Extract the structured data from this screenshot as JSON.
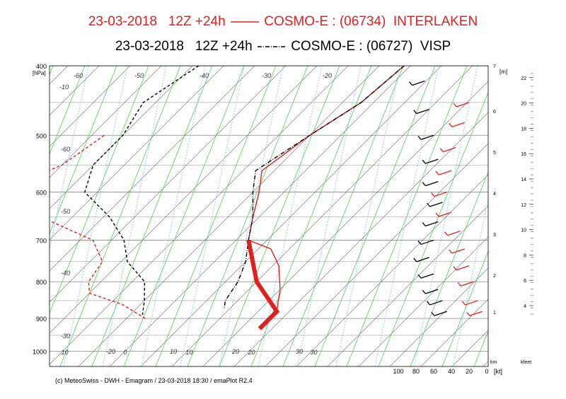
{
  "chart_data": {
    "type": "line",
    "title_lines": [
      {
        "date": "23-03-2018",
        "run": "12Z +24h",
        "model": "COSMO-E : (06734)",
        "station": "INTERLAKEN",
        "line_style": "solid",
        "color": "#e02020"
      },
      {
        "date": "23-03-2018",
        "run": "12Z +24h",
        "model": "COSMO-E : (06727)",
        "station": "VISP",
        "line_style": "dash-dot",
        "color": "#000000"
      }
    ],
    "y_axis": {
      "label": "[hPa]",
      "top_label": "400",
      "ticks": [
        400,
        500,
        600,
        700,
        800,
        900,
        1000
      ],
      "scale": "log",
      "ylim": [
        1050,
        400
      ]
    },
    "x_axis": {
      "tick_labels": [
        "10",
        "0",
        "10",
        "20",
        "30"
      ],
      "xlim": [
        -20,
        40
      ]
    },
    "isotherm_labels": [
      "-60",
      "-50",
      "-40",
      "-30",
      "-20",
      "-10",
      "-60",
      "-50",
      "-40",
      "-30",
      "-20",
      "10",
      "20",
      "30"
    ],
    "height_axis_m": {
      "label": "[m]",
      "ticks": [
        "1",
        "2",
        "3",
        "4",
        "5",
        "6",
        "7"
      ]
    },
    "height_axis_kfeet": {
      "label": "kfeet",
      "ticks": [
        "4",
        "6",
        "8",
        "10",
        "12",
        "14",
        "16",
        "18",
        "20",
        "22"
      ]
    },
    "wind_axis": {
      "label": "[kt]",
      "km_label": "km",
      "ticks": [
        "100",
        "80",
        "60",
        "40",
        "20",
        "0"
      ]
    },
    "series": [
      {
        "name": "INTERLAKEN",
        "color": "#e02020",
        "style": "solid",
        "variable": "temperature",
        "points": [
          [
            -11,
            400
          ],
          [
            -12,
            450
          ],
          [
            -15,
            500
          ],
          [
            -17,
            560
          ],
          [
            -14,
            600
          ],
          [
            -11,
            650
          ],
          [
            -8,
            700
          ],
          [
            -3,
            720
          ],
          [
            1,
            760
          ],
          [
            5,
            820
          ],
          [
            8,
            880
          ],
          [
            8,
            900
          ]
        ]
      },
      {
        "name": "VISP",
        "color": "#000000",
        "style": "dash-dot",
        "variable": "temperature",
        "points": [
          [
            -11,
            400
          ],
          [
            -12,
            450
          ],
          [
            -15,
            500
          ],
          [
            -18,
            560
          ],
          [
            -15,
            600
          ],
          [
            -11,
            650
          ],
          [
            -8,
            700
          ],
          [
            -5,
            750
          ],
          [
            -3,
            800
          ],
          [
            -2,
            850
          ],
          [
            -1,
            870
          ]
        ]
      },
      {
        "name": "INTERLAKEN",
        "color": "#e02020",
        "style": "dashed",
        "variable": "dewpoint",
        "points": [
          [
            -48,
            500
          ],
          [
            -50,
            550
          ],
          [
            -56,
            600
          ],
          [
            -45,
            650
          ],
          [
            -33,
            700
          ],
          [
            -28,
            750
          ],
          [
            -27,
            800
          ],
          [
            -25,
            830
          ],
          [
            -18,
            860
          ],
          [
            -12,
            900
          ]
        ]
      },
      {
        "name": "VISP",
        "color": "#000000",
        "style": "dashed",
        "variable": "dewpoint",
        "points": [
          [
            -44,
            400
          ],
          [
            -47,
            450
          ],
          [
            -45,
            500
          ],
          [
            -45,
            550
          ],
          [
            -42,
            600
          ],
          [
            -34,
            650
          ],
          [
            -28,
            700
          ],
          [
            -24,
            750
          ],
          [
            -18,
            800
          ],
          [
            -15,
            850
          ],
          [
            -13,
            890
          ]
        ]
      },
      {
        "name": "INTERLAKEN",
        "color": "#e02020",
        "style": "thick",
        "variable": "surface-lapse",
        "points": [
          [
            -8,
            700
          ],
          [
            0,
            800
          ],
          [
            8,
            880
          ],
          [
            8,
            930
          ]
        ]
      }
    ],
    "wind_barbs": {
      "INTERLAKEN": [
        {
          "p": 450,
          "speed_kt": 20
        },
        {
          "p": 480,
          "speed_kt": 25
        },
        {
          "p": 520,
          "speed_kt": 35
        },
        {
          "p": 560,
          "speed_kt": 40
        },
        {
          "p": 600,
          "speed_kt": 45
        },
        {
          "p": 640,
          "speed_kt": 40
        },
        {
          "p": 680,
          "speed_kt": 30
        },
        {
          "p": 720,
          "speed_kt": 25
        },
        {
          "p": 760,
          "speed_kt": 20
        },
        {
          "p": 800,
          "speed_kt": 15
        },
        {
          "p": 850,
          "speed_kt": 10
        },
        {
          "p": 880,
          "speed_kt": 5
        }
      ],
      "VISP": [
        {
          "p": 420,
          "speed_kt": 70
        },
        {
          "p": 460,
          "speed_kt": 65
        },
        {
          "p": 500,
          "speed_kt": 60
        },
        {
          "p": 540,
          "speed_kt": 55
        },
        {
          "p": 580,
          "speed_kt": 55
        },
        {
          "p": 620,
          "speed_kt": 50
        },
        {
          "p": 660,
          "speed_kt": 55
        },
        {
          "p": 700,
          "speed_kt": 60
        },
        {
          "p": 740,
          "speed_kt": 65
        },
        {
          "p": 780,
          "speed_kt": 60
        },
        {
          "p": 820,
          "speed_kt": 55
        },
        {
          "p": 850,
          "speed_kt": 50
        },
        {
          "p": 880,
          "speed_kt": 45
        }
      ]
    },
    "footer": "(c) MeteoSwiss - DWH - Emagram / 23-03-2018  18:30 / emaPlot R2.4"
  }
}
